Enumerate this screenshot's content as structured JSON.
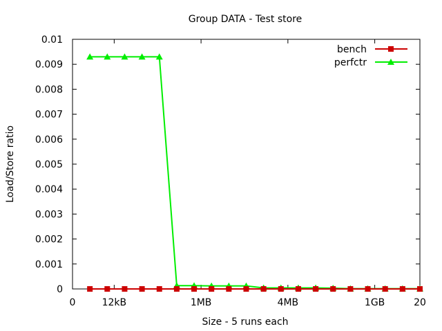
{
  "chart_data": {
    "type": "line",
    "title": "Group DATA - Test store",
    "xlabel": "Size - 5 runs each",
    "ylabel": "Load/Store ratio",
    "xlim": [
      0,
      20
    ],
    "ylim": [
      0,
      0.01
    ],
    "x_ticks": [
      {
        "value": 0,
        "label": "0"
      },
      {
        "value": 2.4,
        "label": "12kB"
      },
      {
        "value": 7.4,
        "label": "1MB"
      },
      {
        "value": 12.4,
        "label": "4MB"
      },
      {
        "value": 17.4,
        "label": "1GB"
      },
      {
        "value": 20,
        "label": "20"
      }
    ],
    "y_ticks": [
      {
        "value": 0,
        "label": "0"
      },
      {
        "value": 0.001,
        "label": "0.001"
      },
      {
        "value": 0.002,
        "label": "0.002"
      },
      {
        "value": 0.003,
        "label": "0.003"
      },
      {
        "value": 0.004,
        "label": "0.004"
      },
      {
        "value": 0.005,
        "label": "0.005"
      },
      {
        "value": 0.006,
        "label": "0.006"
      },
      {
        "value": 0.007,
        "label": "0.007"
      },
      {
        "value": 0.008,
        "label": "0.008"
      },
      {
        "value": 0.009,
        "label": "0.009"
      },
      {
        "value": 0.01,
        "label": "0.01"
      }
    ],
    "grid": false,
    "legend_position": "top-right",
    "x": [
      1,
      2,
      3,
      4,
      5,
      6,
      7,
      8,
      9,
      10,
      11,
      12,
      13,
      14,
      15,
      16,
      17,
      18,
      19,
      20
    ],
    "series": [
      {
        "name": "bench",
        "color": "#cc0000",
        "marker": "square",
        "values": [
          0,
          0,
          0,
          0,
          0,
          0,
          0,
          0,
          0,
          0,
          0,
          0,
          0,
          0,
          0,
          0,
          0,
          0,
          0,
          0
        ]
      },
      {
        "name": "perfctr",
        "color": "#00ee00",
        "marker": "triangle",
        "values": [
          0.0093,
          0.0093,
          0.0093,
          0.0093,
          0.0093,
          0.00013,
          0.00013,
          0.00012,
          0.00012,
          0.00012,
          4e-05,
          4e-05,
          4e-05,
          4e-05,
          3e-05,
          1e-05,
          1e-05,
          1e-05,
          1e-05,
          1e-05
        ]
      }
    ]
  }
}
